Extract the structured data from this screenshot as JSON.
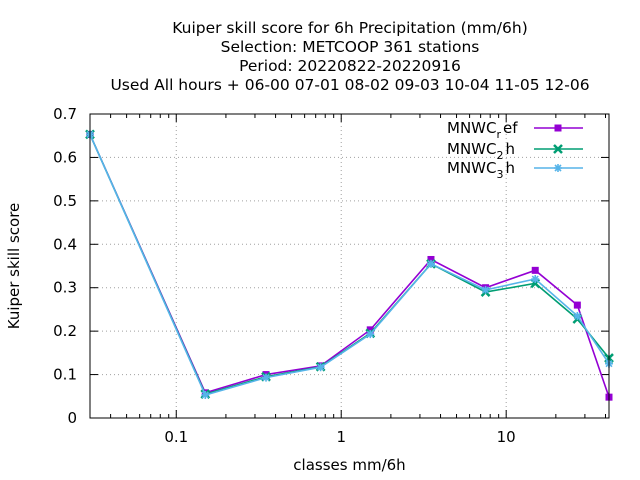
{
  "chart_data": {
    "type": "line",
    "title_lines": [
      "Kuiper skill score  for 6h Precipitation (mm/6h)",
      "Selection: METCOOP    361 stations",
      "Period: 20220822-20220916",
      "Used  All hours  + 06-00 07-01 08-02 09-03 10-04 11-05 12-06"
    ],
    "xlabel": "classes mm/6h",
    "ylabel": "Kuiper skill score",
    "x_scale": "log",
    "xlim": [
      0.03,
      42
    ],
    "ylim": [
      0,
      0.7
    ],
    "x_ticks": [
      0.1,
      1,
      10
    ],
    "x_tick_labels": [
      "0.1",
      "1",
      "10"
    ],
    "y_ticks": [
      0,
      0.1,
      0.2,
      0.3,
      0.4,
      0.5,
      0.6,
      0.7
    ],
    "y_tick_labels": [
      "0",
      "0.1",
      "0.2",
      "0.3",
      "0.4",
      "0.5",
      "0.6",
      "0.7"
    ],
    "grid": true,
    "legend_position": "top-right",
    "x": [
      0.03,
      0.15,
      0.35,
      0.75,
      1.5,
      3.5,
      7.5,
      15,
      27,
      42
    ],
    "series": [
      {
        "name": "MNWC_ref",
        "label_main": "MNWC",
        "label_sub": "r",
        "label_tail": "ef",
        "color": "#9400d3",
        "marker": "square",
        "values": [
          0.653,
          0.058,
          0.1,
          0.12,
          0.203,
          0.365,
          0.3,
          0.34,
          0.26,
          0.048
        ]
      },
      {
        "name": "MNWC_2h",
        "label_main": "MNWC",
        "label_sub": "2",
        "label_tail": "h",
        "color": "#009e73",
        "marker": "cross",
        "values": [
          0.653,
          0.055,
          0.095,
          0.118,
          0.195,
          0.355,
          0.29,
          0.31,
          0.228,
          0.138
        ]
      },
      {
        "name": "MNWC_3h",
        "label_main": "MNWC",
        "label_sub": "3",
        "label_tail": "h",
        "color": "#56b4e9",
        "marker": "star",
        "values": [
          0.653,
          0.053,
          0.093,
          0.117,
          0.193,
          0.355,
          0.295,
          0.32,
          0.235,
          0.125
        ]
      }
    ]
  }
}
